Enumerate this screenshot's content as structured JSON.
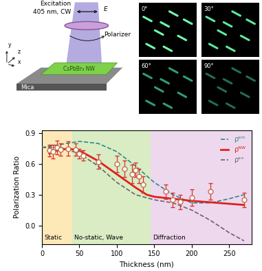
{
  "diagram": {
    "excitation": "Excitation",
    "source": "405 nm, CW",
    "field": "E",
    "polarizer": "Polarizer",
    "wire": "CsPbBr₃ NW",
    "substrate": "Mica",
    "axes": [
      "x",
      "y",
      "z"
    ],
    "panels": [
      "0°",
      "30°",
      "60°",
      "90°"
    ]
  },
  "chart_data": {
    "type": "scatter",
    "xlabel": "Thickness (nm)",
    "ylabel": "Polarization Ratio",
    "xlim": [
      0,
      280
    ],
    "xticks": [
      0,
      50,
      100,
      150,
      200,
      250
    ],
    "ylim": [
      -0.18,
      0.93
    ],
    "yticks": [
      {
        "value": 0.0,
        "label": "0.0"
      },
      {
        "value": 0.3,
        "label": "0.3"
      },
      {
        "value": 0.6,
        "label": "0.6"
      },
      {
        "value": 0.9,
        "label": "0.9"
      }
    ],
    "legend": "upper right",
    "regions": [
      {
        "label": "Static",
        "x": [
          0,
          40
        ],
        "color": "#fde9b8"
      },
      {
        "label": "No-static, Wave",
        "x": [
          40,
          145
        ],
        "color": "#d9ecc4"
      },
      {
        "label": "Diffraction",
        "x": [
          145,
          280
        ],
        "color": "#eed8ee"
      }
    ],
    "series": [
      {
        "type": "scatter",
        "color": "#d9302c",
        "marker": "o",
        "x": [
          10,
          15,
          20,
          25,
          35,
          45,
          50,
          55,
          75,
          100,
          110,
          120,
          125,
          130,
          135,
          165,
          175,
          185,
          200,
          225,
          270
        ],
        "values": [
          0.73,
          0.72,
          0.76,
          0.74,
          0.75,
          0.74,
          0.7,
          0.68,
          0.62,
          0.6,
          0.55,
          0.5,
          0.54,
          0.48,
          0.4,
          0.33,
          0.25,
          0.23,
          0.27,
          0.33,
          0.25
        ],
        "errors": [
          0.06,
          0.07,
          0.07,
          0.06,
          0.07,
          0.06,
          0.05,
          0.05,
          0.07,
          0.08,
          0.08,
          0.09,
          0.07,
          0.07,
          0.08,
          0.07,
          0.07,
          0.07,
          0.08,
          0.08,
          0.07
        ]
      },
      {
        "type": "line",
        "name": "ρᵉᵐ",
        "color": "#2a8a8a",
        "line_style": "dashed",
        "x": [
          0,
          25,
          50,
          75,
          100,
          125,
          150,
          175,
          200,
          225,
          250,
          270
        ],
        "values": [
          0.76,
          0.79,
          0.82,
          0.8,
          0.72,
          0.58,
          0.42,
          0.3,
          0.22,
          0.22,
          0.26,
          0.3
        ]
      },
      {
        "type": "line",
        "name": "ρᴺᵂ",
        "color": "#e0201c",
        "line_style": "solid",
        "x": [
          10,
          20,
          35,
          50,
          75,
          100,
          125,
          140,
          150,
          200,
          270
        ],
        "values": [
          0.7,
          0.73,
          0.75,
          0.73,
          0.63,
          0.5,
          0.37,
          0.3,
          0.28,
          0.24,
          0.2
        ]
      },
      {
        "type": "line",
        "name": "ρᵉˣ",
        "color": "#666666",
        "line_style": "dashed",
        "x": [
          0,
          25,
          50,
          75,
          100,
          125,
          150,
          175,
          200,
          225,
          250,
          270
        ],
        "values": [
          0.76,
          0.76,
          0.7,
          0.58,
          0.42,
          0.3,
          0.25,
          0.22,
          0.15,
          0.05,
          -0.07,
          -0.15
        ]
      }
    ]
  }
}
